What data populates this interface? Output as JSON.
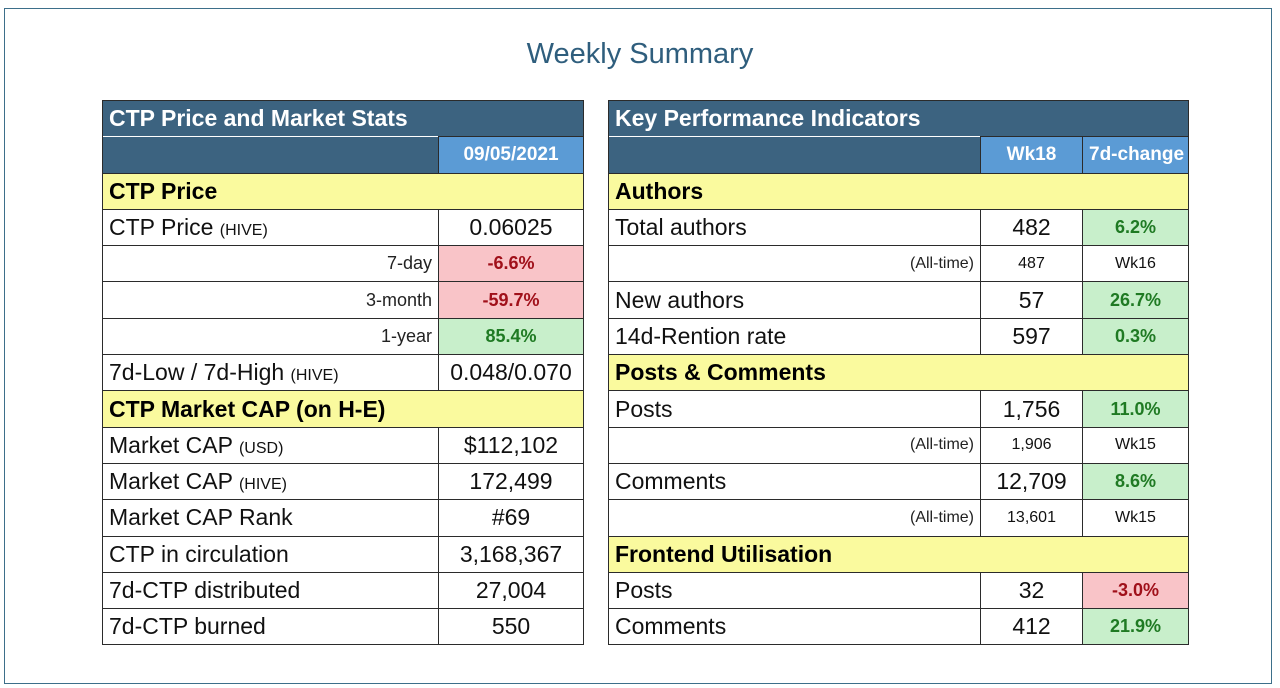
{
  "title": "Weekly Summary",
  "stats": {
    "header": "CTP Price and Market Stats",
    "date": "09/05/2021",
    "price_section": "CTP Price",
    "price_label": "CTP Price",
    "price_unit": "(HIVE)",
    "price_value": "0.06025",
    "changes": [
      {
        "label": "7-day",
        "value": "-6.6%",
        "status": "negative"
      },
      {
        "label": "3-month",
        "value": "-59.7%",
        "status": "negative"
      },
      {
        "label": "1-year",
        "value": "85.4%",
        "status": "positive"
      }
    ],
    "lowhigh_label": "7d-Low / 7d-High",
    "lowhigh_unit": "(HIVE)",
    "lowhigh_value": "0.048/0.070",
    "cap_section": "CTP Market CAP (on H-E)",
    "rows": [
      {
        "label": "Market CAP",
        "unit": "(USD)",
        "value": "$112,102"
      },
      {
        "label": "Market CAP",
        "unit": "(HIVE)",
        "value": "172,499"
      },
      {
        "label": "Market CAP Rank",
        "unit": "",
        "value": "#69"
      },
      {
        "label": "CTP in circulation",
        "unit": "",
        "value": "3,168,367"
      },
      {
        "label": "7d-CTP distributed",
        "unit": "",
        "value": "27,004"
      },
      {
        "label": "7d-CTP burned",
        "unit": "",
        "value": "550"
      }
    ]
  },
  "kpi": {
    "header": "Key Performance Indicators",
    "col_week": "Wk18",
    "col_change": "7d-change",
    "authors_section": "Authors",
    "total_authors": {
      "label": "Total authors",
      "value": "482",
      "change": "6.2%"
    },
    "authors_alltime": {
      "label": "(All-time)",
      "value": "487",
      "week": "Wk16"
    },
    "new_authors": {
      "label": "New authors",
      "value": "57",
      "change": "26.7%"
    },
    "retention": {
      "label": "14d-Rention rate",
      "value": "597",
      "change": "0.3%"
    },
    "posts_section": "Posts & Comments",
    "posts": {
      "label": "Posts",
      "value": "1,756",
      "change": "11.0%"
    },
    "posts_alltime": {
      "label": "(All-time)",
      "value": "1,906",
      "week": "Wk15"
    },
    "comments": {
      "label": "Comments",
      "value": "12,709",
      "change": "8.6%"
    },
    "comments_alltime": {
      "label": "(All-time)",
      "value": "13,601",
      "week": "Wk15"
    },
    "frontend_section": "Frontend Utilisation",
    "fe_posts": {
      "label": "Posts",
      "value": "32",
      "change": "-3.0%"
    },
    "fe_comments": {
      "label": "Comments",
      "value": "412",
      "change": "21.9%"
    }
  },
  "colors": {
    "header": "#3c6380",
    "subheader": "#5b9bd5",
    "section": "#fafa9e",
    "negative_bg": "#f9c4c8",
    "positive_bg": "#c8efcb"
  }
}
